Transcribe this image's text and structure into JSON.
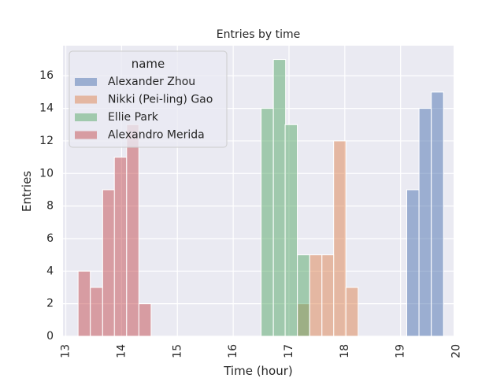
{
  "chart_data": {
    "type": "bar",
    "title": "Entries by time",
    "xlabel": "Time (hour)",
    "ylabel": "Entries",
    "xlim": [
      12.95,
      19.95
    ],
    "ylim": [
      0,
      17.85
    ],
    "xticks": [
      13,
      14,
      15,
      16,
      17,
      18,
      19,
      20
    ],
    "yticks": [
      0,
      2,
      4,
      6,
      8,
      10,
      12,
      14,
      16
    ],
    "bin_width": 0.219,
    "grid": true,
    "legend": {
      "title": "name",
      "placement": "top-left"
    },
    "series": [
      {
        "name": "Alexander Zhou",
        "color": "#4c72b0",
        "bins": [
          {
            "x": 19.22,
            "value": 9
          },
          {
            "x": 19.44,
            "value": 14
          },
          {
            "x": 19.66,
            "value": 15
          }
        ]
      },
      {
        "name": "Nikki (Pei-ling) Gao",
        "color": "#dd8452",
        "bins": [
          {
            "x": 17.26,
            "value": 2
          },
          {
            "x": 17.48,
            "value": 5
          },
          {
            "x": 17.7,
            "value": 5
          },
          {
            "x": 17.91,
            "value": 12
          },
          {
            "x": 18.13,
            "value": 3
          }
        ]
      },
      {
        "name": "Ellie Park",
        "color": "#55a868",
        "bins": [
          {
            "x": 16.61,
            "value": 14
          },
          {
            "x": 16.83,
            "value": 17
          },
          {
            "x": 17.04,
            "value": 13
          },
          {
            "x": 17.26,
            "value": 5
          }
        ]
      },
      {
        "name": "Alexandro Merida",
        "color": "#c44e52",
        "bins": [
          {
            "x": 13.33,
            "value": 4
          },
          {
            "x": 13.55,
            "value": 3
          },
          {
            "x": 13.77,
            "value": 9
          },
          {
            "x": 13.98,
            "value": 11
          },
          {
            "x": 14.2,
            "value": 13
          },
          {
            "x": 14.42,
            "value": 2
          }
        ]
      }
    ]
  },
  "style": {
    "axes_bg": "#eaeaf2",
    "grid_color": "#ffffff",
    "bar_opacity": 0.5
  }
}
